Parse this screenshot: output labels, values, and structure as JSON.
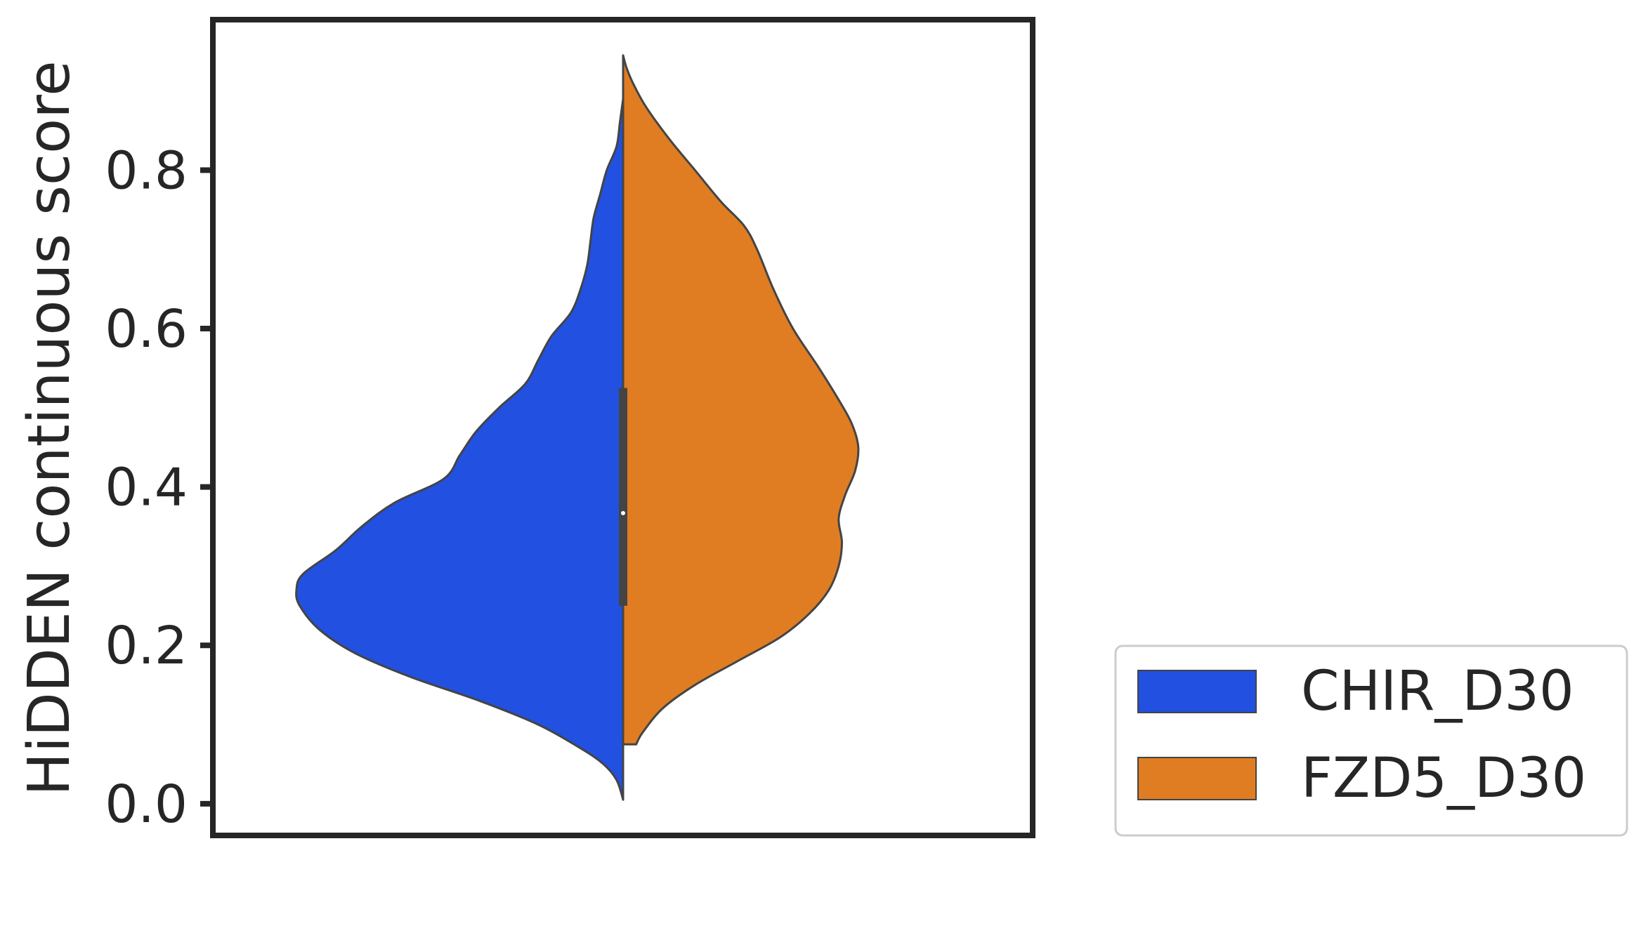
{
  "chart_data": {
    "type": "violin",
    "split": true,
    "ylabel": "HiDDEN continuous score",
    "xlabel": "",
    "ylim": [
      -0.04,
      0.99
    ],
    "yticks": [
      {
        "value": 0.0,
        "label": "0.0"
      },
      {
        "value": 0.2,
        "label": "0.2"
      },
      {
        "value": 0.4,
        "label": "0.4"
      },
      {
        "value": 0.6,
        "label": "0.6"
      },
      {
        "value": 0.8,
        "label": "0.8"
      }
    ],
    "grid": false,
    "legend_position": "lower-right-outside",
    "series": [
      {
        "name": "CHIR_D30",
        "color": "#2250e0",
        "side": "left",
        "min": 0.005,
        "max": 0.89,
        "density": [
          [
            0.005,
            0.0
          ],
          [
            0.03,
            0.02
          ],
          [
            0.05,
            0.06
          ],
          [
            0.07,
            0.13
          ],
          [
            0.1,
            0.26
          ],
          [
            0.13,
            0.44
          ],
          [
            0.16,
            0.65
          ],
          [
            0.19,
            0.82
          ],
          [
            0.22,
            0.93
          ],
          [
            0.25,
            0.99
          ],
          [
            0.27,
            1.0
          ],
          [
            0.29,
            0.98
          ],
          [
            0.32,
            0.88
          ],
          [
            0.35,
            0.8
          ],
          [
            0.38,
            0.7
          ],
          [
            0.41,
            0.55
          ],
          [
            0.44,
            0.5
          ],
          [
            0.47,
            0.45
          ],
          [
            0.5,
            0.38
          ],
          [
            0.53,
            0.3
          ],
          [
            0.56,
            0.26
          ],
          [
            0.59,
            0.22
          ],
          [
            0.62,
            0.16
          ],
          [
            0.65,
            0.13
          ],
          [
            0.68,
            0.11
          ],
          [
            0.71,
            0.1
          ],
          [
            0.74,
            0.09
          ],
          [
            0.77,
            0.07
          ],
          [
            0.8,
            0.05
          ],
          [
            0.83,
            0.02
          ],
          [
            0.86,
            0.01
          ],
          [
            0.89,
            0.0
          ]
        ]
      },
      {
        "name": "FZD5_D30",
        "color": "#e07d22",
        "side": "right",
        "min": 0.075,
        "max": 0.945,
        "density": [
          [
            0.075,
            0.04
          ],
          [
            0.09,
            0.06
          ],
          [
            0.12,
            0.12
          ],
          [
            0.15,
            0.22
          ],
          [
            0.18,
            0.35
          ],
          [
            0.21,
            0.48
          ],
          [
            0.24,
            0.57
          ],
          [
            0.27,
            0.63
          ],
          [
            0.3,
            0.66
          ],
          [
            0.33,
            0.67
          ],
          [
            0.36,
            0.66
          ],
          [
            0.39,
            0.68
          ],
          [
            0.42,
            0.71
          ],
          [
            0.45,
            0.72
          ],
          [
            0.48,
            0.7
          ],
          [
            0.51,
            0.66
          ],
          [
            0.55,
            0.6
          ],
          [
            0.6,
            0.52
          ],
          [
            0.65,
            0.46
          ],
          [
            0.7,
            0.41
          ],
          [
            0.73,
            0.37
          ],
          [
            0.76,
            0.3
          ],
          [
            0.8,
            0.22
          ],
          [
            0.84,
            0.14
          ],
          [
            0.88,
            0.07
          ],
          [
            0.91,
            0.03
          ],
          [
            0.93,
            0.01
          ],
          [
            0.945,
            0.0
          ]
        ]
      }
    ],
    "inner_box": {
      "q1": 0.25,
      "q3": 0.525,
      "median": 0.367,
      "color": "#444444"
    }
  },
  "colors": {
    "axes": "#262626",
    "violin_edge": "#444444",
    "legend_border": "#cccccc"
  }
}
